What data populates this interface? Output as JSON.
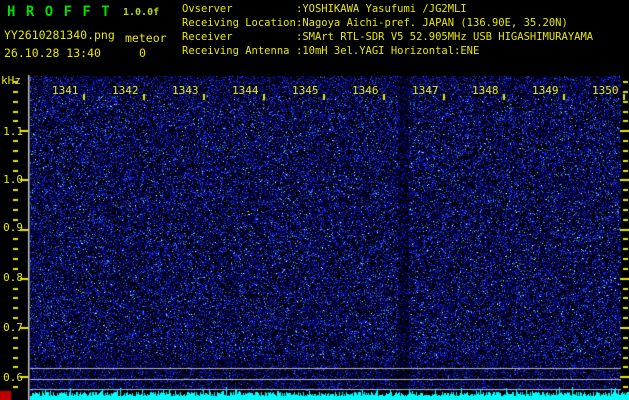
{
  "app": {
    "title": "H R O F F T",
    "version": "1.0.0f",
    "filename": "YY2610281340.png",
    "mode_label": "meteor",
    "datetime": "26.10.28 13:40",
    "count": "0"
  },
  "station_info": {
    "rows": [
      {
        "label": "Ovserver",
        "value": ":YOSHIKAWA Yasufumi /JG2MLI"
      },
      {
        "label": "Receiving Location",
        "value": ":Nagoya Aichi-pref. JAPAN (136.90E, 35.20N)"
      },
      {
        "label": "Receiver",
        "value": ":SMArt RTL-SDR V5 52.905MHz USB HIGASHIMURAYAMA"
      },
      {
        "label": "Receiving Antenna",
        "value": ":10mH 3el.YAGI Horizontal:ENE"
      }
    ]
  },
  "spectrogram": {
    "type": "heatmap",
    "ylabel": "kHz",
    "freq_tick_labels": [
      "1.1",
      "1.0",
      "0.9",
      "0.8",
      "0.7",
      "0.6"
    ],
    "time_tick_labels": [
      "1341",
      "1342",
      "1343",
      "1344",
      "1345",
      "1346",
      "1347",
      "1348",
      "1349",
      "1350"
    ],
    "calibration_line_count": 3
  },
  "colors": {
    "title_green": "#00DE00",
    "version_green": "#B4DC00",
    "text_yellow": "#E8E800",
    "tick_yellow": "#E8E800",
    "noise_blues": [
      "#000046",
      "#000096",
      "#1428C8",
      "#3C5AF0"
    ],
    "noise_rare": [
      "#28A0DC",
      "#B4FFFF",
      "#78FF96"
    ],
    "grid_gray": "#B4B4BE",
    "axis_gray": "#C8C8CC",
    "level_graph_cyan": "#00FFFF",
    "marker_red": "#C00000"
  }
}
